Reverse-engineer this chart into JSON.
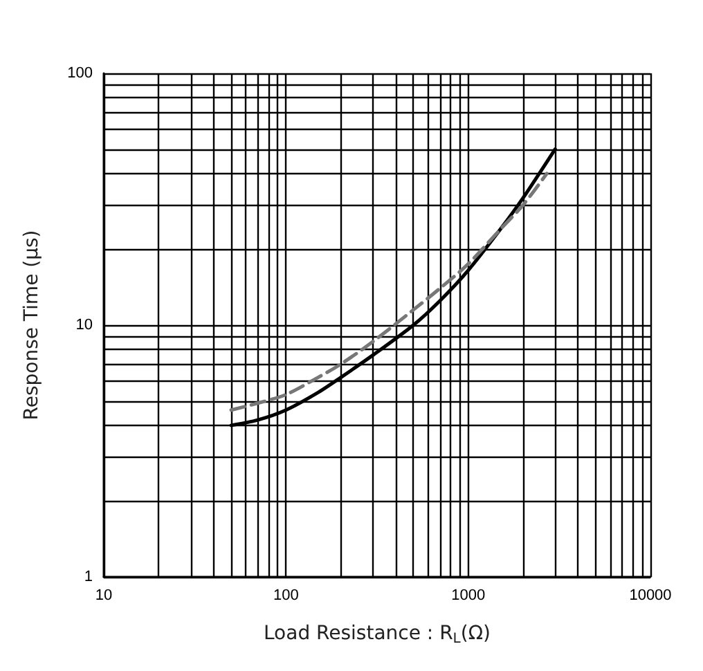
{
  "chart_data": {
    "type": "line",
    "xlabel": "Load Resistance : R$_{L}$(Ω)",
    "ylabel": "Response Time (μs)",
    "log": "xy",
    "grid": true,
    "marker": "none",
    "xlim": [
      10,
      10000
    ],
    "ylim": [
      1,
      100
    ],
    "xticks": [
      10,
      {
        "value": 20,
        "label": null
      },
      {
        "value": 30,
        "label": null
      },
      {
        "value": 40,
        "label": null
      },
      {
        "value": 50,
        "label": null
      },
      {
        "value": 60,
        "label": null
      },
      {
        "value": 70,
        "label": null
      },
      {
        "value": 80,
        "label": null
      },
      {
        "value": 90,
        "label": null
      },
      100,
      {
        "value": 200,
        "label": null
      },
      {
        "value": 300,
        "label": null
      },
      {
        "value": 400,
        "label": null
      },
      {
        "value": 500,
        "label": null
      },
      {
        "value": 600,
        "label": null
      },
      {
        "value": 700,
        "label": null
      },
      {
        "value": 800,
        "label": null
      },
      {
        "value": 900,
        "label": null
      },
      1000,
      {
        "value": 2000,
        "label": null
      },
      {
        "value": 3000,
        "label": null
      },
      {
        "value": 4000,
        "label": null
      },
      {
        "value": 5000,
        "label": null
      },
      {
        "value": 6000,
        "label": null
      },
      {
        "value": 7000,
        "label": null
      },
      {
        "value": 8000,
        "label": null
      },
      {
        "value": 9000,
        "label": null
      },
      10000
    ],
    "yticks": [
      1,
      {
        "value": 2,
        "label": null
      },
      {
        "value": 3,
        "label": null
      },
      {
        "value": 4,
        "label": null
      },
      {
        "value": 5,
        "label": null
      },
      {
        "value": 6,
        "label": null
      },
      {
        "value": 7,
        "label": null
      },
      {
        "value": 8,
        "label": null
      },
      {
        "value": 9,
        "label": null
      },
      10,
      {
        "value": 20,
        "label": null
      },
      {
        "value": 30,
        "label": null
      },
      {
        "value": 40,
        "label": null
      },
      {
        "value": 50,
        "label": null
      },
      {
        "value": 60,
        "label": null
      },
      {
        "value": 70,
        "label": null
      },
      {
        "value": 80,
        "label": null
      },
      {
        "value": 90,
        "label": null
      },
      100
    ],
    "series": [
      {
        "color": "#000000",
        "line_style": "solid",
        "x": [
          50,
          70,
          100,
          150,
          200,
          300,
          500,
          700,
          1000,
          1500,
          2000,
          3000
        ],
        "values": [
          4,
          4.2,
          4.6,
          5.4,
          6.2,
          7.6,
          10,
          12.5,
          16.5,
          24,
          32,
          50
        ]
      },
      {
        "color": "#777777",
        "line_style": "dashed",
        "x": [
          50,
          70,
          100,
          150,
          200,
          300,
          500,
          700,
          1000,
          1500,
          2000,
          2700
        ],
        "values": [
          4.6,
          4.9,
          5.3,
          6.2,
          7,
          8.6,
          11.5,
          14,
          17.5,
          24,
          30,
          40
        ]
      }
    ]
  }
}
